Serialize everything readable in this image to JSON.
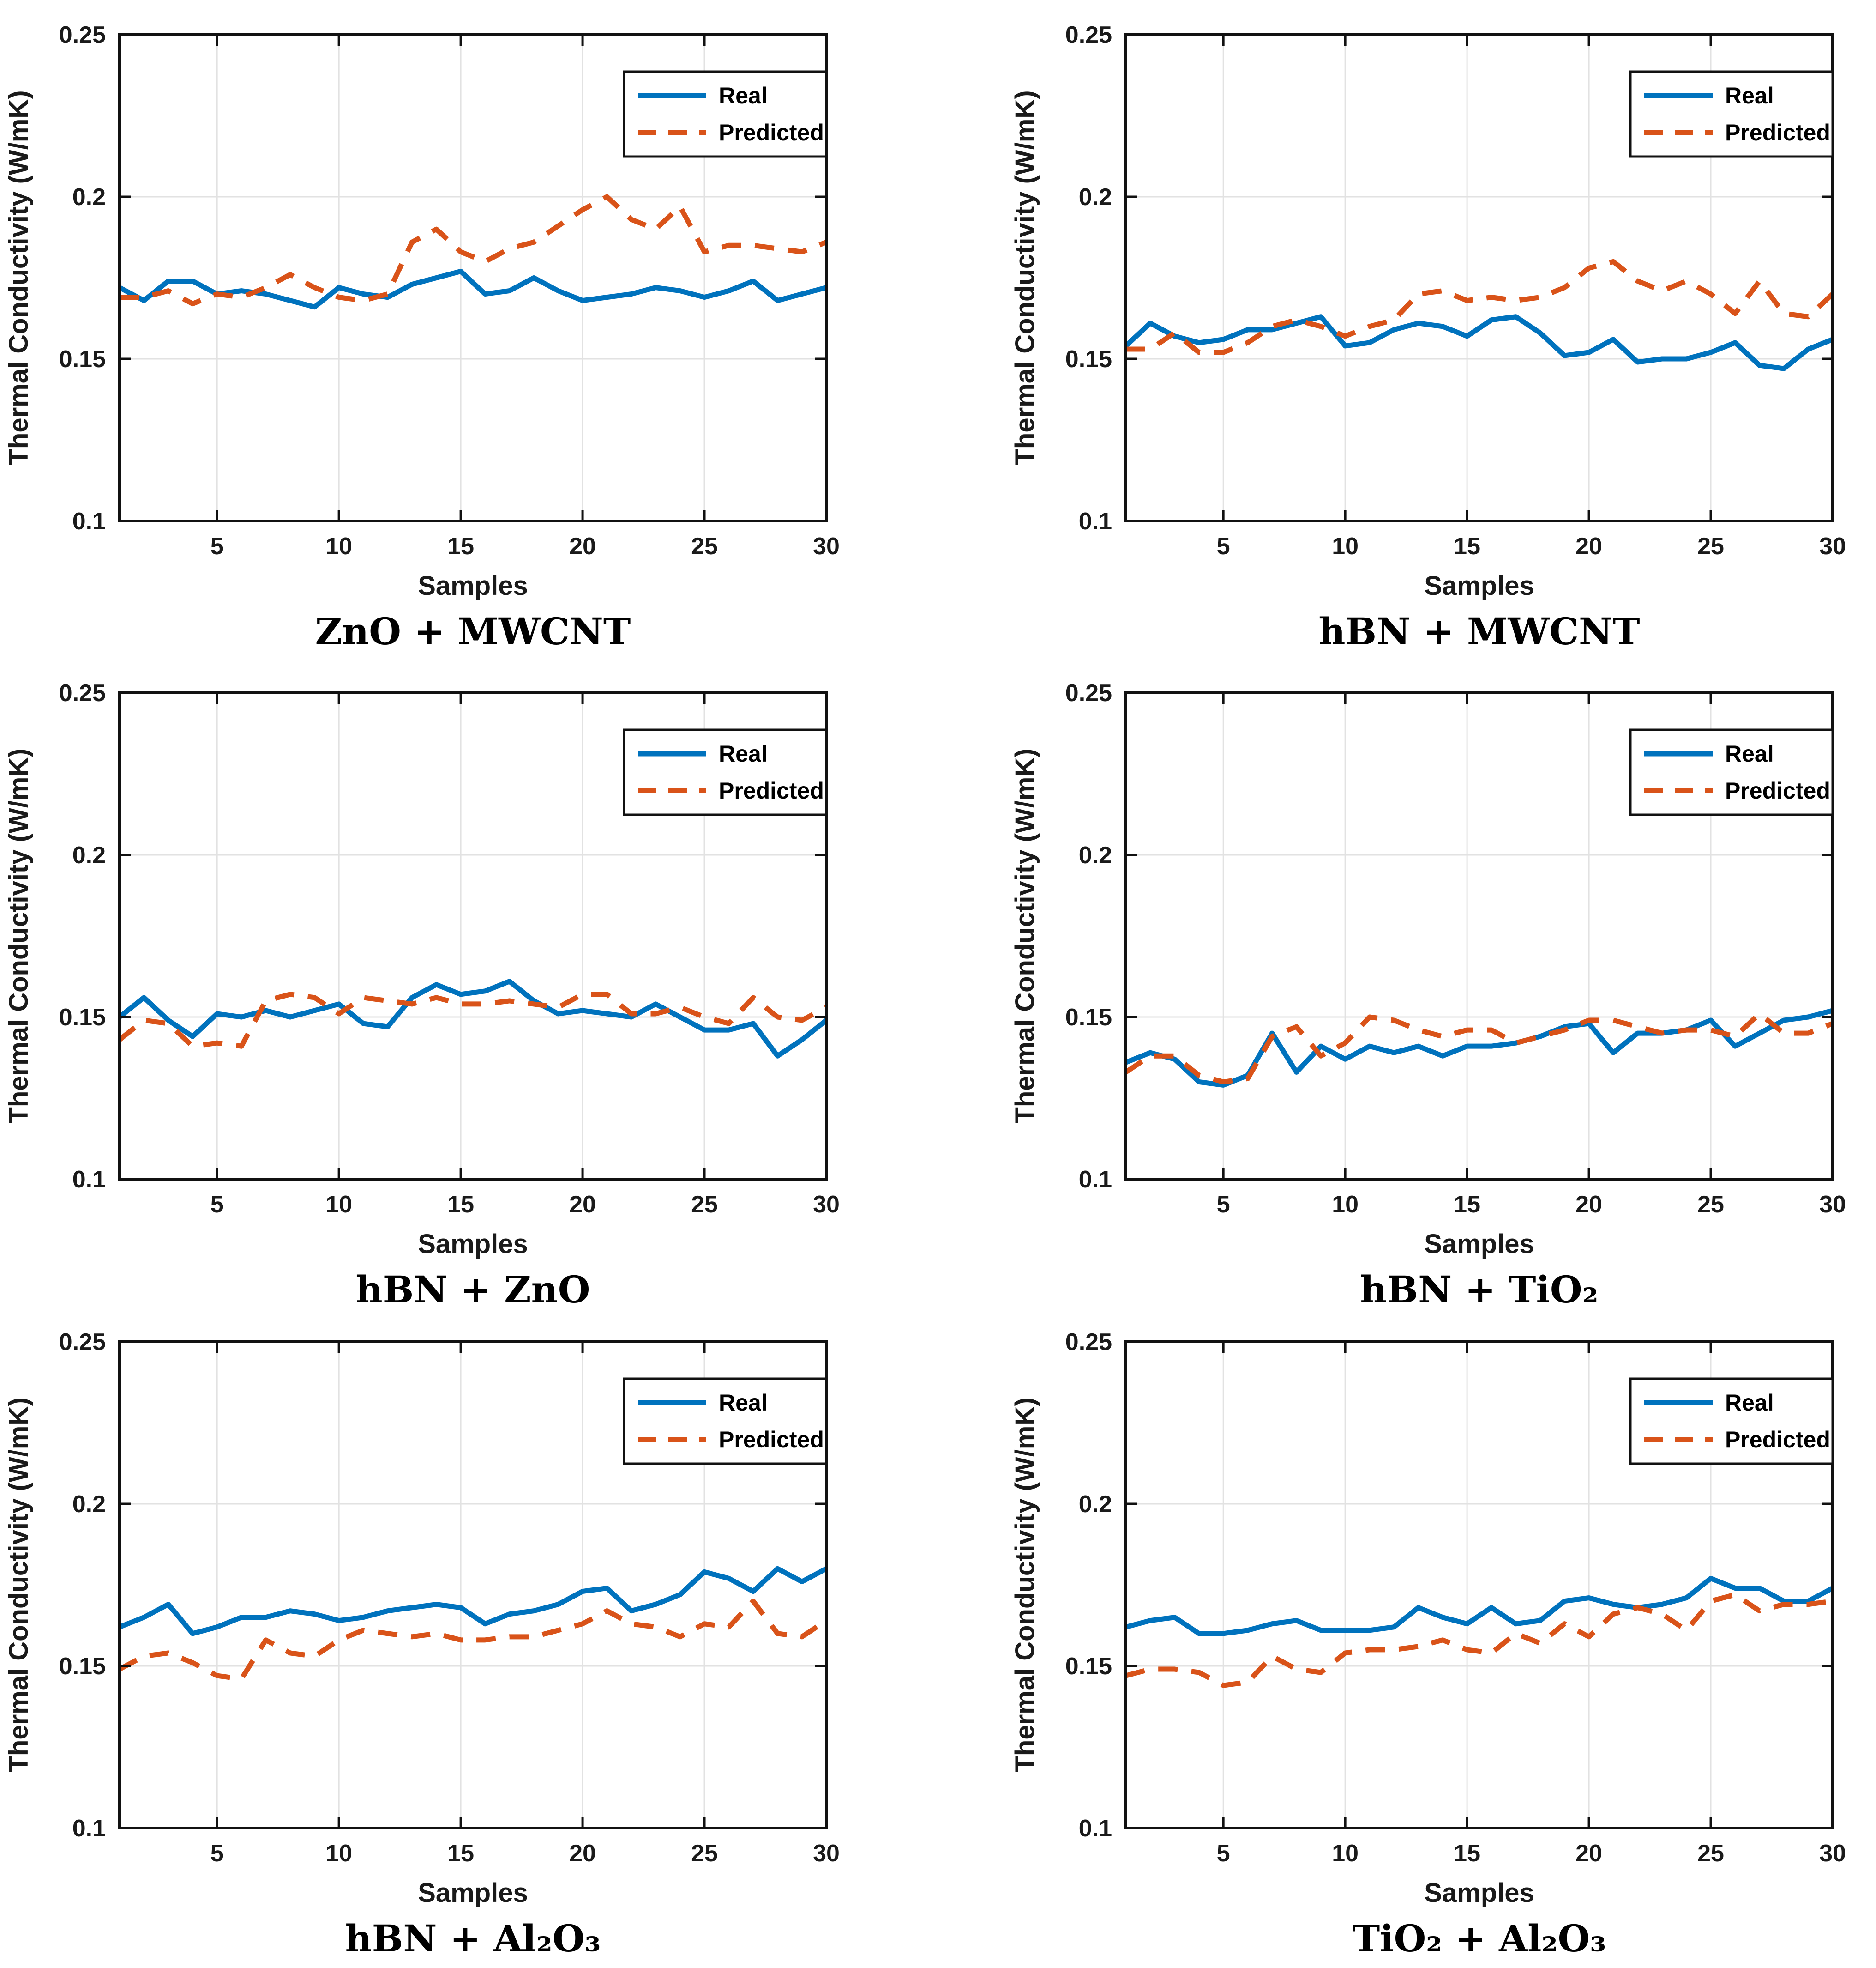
{
  "figure": {
    "xlabel": "Samples",
    "ylabel": "Thermal Conductivity (W/mK)",
    "legend": {
      "real_label": "Real",
      "predicted_label": "Predicted",
      "position": "top-right"
    },
    "colors": {
      "real": "#0072BD",
      "predicted": "#D95319",
      "grid": "#E2E2E2",
      "axis": "#111111",
      "tick_text": "#1a1a1a",
      "background": "#ffffff"
    }
  },
  "chart_data": [
    {
      "type": "line",
      "title": "ZnO + MWCNT",
      "xlabel": "Samples",
      "ylabel": "Thermal Conductivity (W/mK)",
      "xlim": [
        1,
        30
      ],
      "ylim": [
        0.1,
        0.25
      ],
      "xticks": [
        5,
        10,
        15,
        20,
        25,
        30
      ],
      "xtick_labels": [
        "5",
        "10",
        "15",
        "20",
        "25",
        "30"
      ],
      "yticks": [
        0.1,
        0.15,
        0.2,
        0.25
      ],
      "ytick_labels": [
        "0.1",
        "0.15",
        "0.2",
        "0.25"
      ],
      "grid": true,
      "legend_position": "top-right",
      "x": [
        1,
        2,
        3,
        4,
        5,
        6,
        7,
        8,
        9,
        10,
        11,
        12,
        13,
        14,
        15,
        16,
        17,
        18,
        19,
        20,
        21,
        22,
        23,
        24,
        25,
        26,
        27,
        28,
        29,
        30
      ],
      "series": [
        {
          "name": "Real",
          "style": "solid",
          "values": [
            0.172,
            0.168,
            0.174,
            0.174,
            0.17,
            0.171,
            0.17,
            0.168,
            0.166,
            0.172,
            0.17,
            0.169,
            0.173,
            0.175,
            0.177,
            0.17,
            0.171,
            0.175,
            0.171,
            0.168,
            0.169,
            0.17,
            0.172,
            0.171,
            0.169,
            0.171,
            0.174,
            0.168,
            0.17,
            0.172
          ]
        },
        {
          "name": "Predicted",
          "style": "dashed",
          "values": [
            0.169,
            0.169,
            0.171,
            0.167,
            0.17,
            0.169,
            0.172,
            0.176,
            0.172,
            0.169,
            0.168,
            0.17,
            0.186,
            0.19,
            0.183,
            0.18,
            0.184,
            0.186,
            0.191,
            0.196,
            0.2,
            0.193,
            0.19,
            0.197,
            0.183,
            0.185,
            0.185,
            0.184,
            0.183,
            0.186
          ]
        }
      ]
    },
    {
      "type": "line",
      "title": "hBN + MWCNT",
      "xlabel": "Samples",
      "ylabel": "Thermal Conductivity (W/mK)",
      "xlim": [
        1,
        30
      ],
      "ylim": [
        0.1,
        0.25
      ],
      "xticks": [
        5,
        10,
        15,
        20,
        25,
        30
      ],
      "xtick_labels": [
        "5",
        "10",
        "15",
        "20",
        "25",
        "30"
      ],
      "yticks": [
        0.1,
        0.15,
        0.2,
        0.25
      ],
      "ytick_labels": [
        "0.1",
        "0.15",
        "0.2",
        "0.25"
      ],
      "grid": true,
      "legend_position": "top-right",
      "x": [
        1,
        2,
        3,
        4,
        5,
        6,
        7,
        8,
        9,
        10,
        11,
        12,
        13,
        14,
        15,
        16,
        17,
        18,
        19,
        20,
        21,
        22,
        23,
        24,
        25,
        26,
        27,
        28,
        29,
        30
      ],
      "series": [
        {
          "name": "Real",
          "style": "solid",
          "values": [
            0.154,
            0.161,
            0.157,
            0.155,
            0.156,
            0.159,
            0.159,
            0.161,
            0.163,
            0.154,
            0.155,
            0.159,
            0.161,
            0.16,
            0.157,
            0.162,
            0.163,
            0.158,
            0.151,
            0.152,
            0.156,
            0.149,
            0.15,
            0.15,
            0.152,
            0.155,
            0.148,
            0.147,
            0.153,
            0.156
          ]
        },
        {
          "name": "Predicted",
          "style": "dashed",
          "values": [
            0.153,
            0.153,
            0.158,
            0.152,
            0.152,
            0.155,
            0.16,
            0.162,
            0.16,
            0.157,
            0.16,
            0.162,
            0.17,
            0.171,
            0.168,
            0.169,
            0.168,
            0.169,
            0.172,
            0.178,
            0.18,
            0.174,
            0.171,
            0.174,
            0.17,
            0.164,
            0.174,
            0.164,
            0.163,
            0.17
          ]
        }
      ]
    },
    {
      "type": "line",
      "title": "hBN + ZnO",
      "xlabel": "Samples",
      "ylabel": "Thermal Conductivity (W/mK)",
      "xlim": [
        1,
        30
      ],
      "ylim": [
        0.1,
        0.25
      ],
      "xticks": [
        5,
        10,
        15,
        20,
        25,
        30
      ],
      "xtick_labels": [
        "5",
        "10",
        "15",
        "20",
        "25",
        "30"
      ],
      "yticks": [
        0.1,
        0.15,
        0.2,
        0.25
      ],
      "ytick_labels": [
        "0.1",
        "0.15",
        "0.2",
        "0.25"
      ],
      "grid": true,
      "legend_position": "top-right",
      "x": [
        1,
        2,
        3,
        4,
        5,
        6,
        7,
        8,
        9,
        10,
        11,
        12,
        13,
        14,
        15,
        16,
        17,
        18,
        19,
        20,
        21,
        22,
        23,
        24,
        25,
        26,
        27,
        28,
        29,
        30
      ],
      "series": [
        {
          "name": "Real",
          "style": "solid",
          "values": [
            0.15,
            0.156,
            0.149,
            0.144,
            0.151,
            0.15,
            0.152,
            0.15,
            0.152,
            0.154,
            0.148,
            0.147,
            0.156,
            0.16,
            0.157,
            0.158,
            0.161,
            0.155,
            0.151,
            0.152,
            0.151,
            0.15,
            0.154,
            0.15,
            0.146,
            0.146,
            0.148,
            0.138,
            0.143,
            0.149
          ]
        },
        {
          "name": "Predicted",
          "style": "dashed",
          "values": [
            0.143,
            0.149,
            0.148,
            0.141,
            0.142,
            0.141,
            0.155,
            0.157,
            0.156,
            0.151,
            0.156,
            0.155,
            0.154,
            0.156,
            0.154,
            0.154,
            0.155,
            0.154,
            0.153,
            0.157,
            0.157,
            0.151,
            0.151,
            0.153,
            0.15,
            0.148,
            0.156,
            0.15,
            0.149,
            0.153
          ]
        }
      ]
    },
    {
      "type": "line",
      "title": "hBN + TiO₂",
      "xlabel": "Samples",
      "ylabel": "Thermal Conductivity (W/mK)",
      "xlim": [
        1,
        30
      ],
      "ylim": [
        0.1,
        0.25
      ],
      "xticks": [
        5,
        10,
        15,
        20,
        25,
        30
      ],
      "xtick_labels": [
        "5",
        "10",
        "15",
        "20",
        "25",
        "30"
      ],
      "yticks": [
        0.1,
        0.15,
        0.2,
        0.25
      ],
      "ytick_labels": [
        "0.1",
        "0.15",
        "0.2",
        "0.25"
      ],
      "grid": true,
      "legend_position": "top-right",
      "x": [
        1,
        2,
        3,
        4,
        5,
        6,
        7,
        8,
        9,
        10,
        11,
        12,
        13,
        14,
        15,
        16,
        17,
        18,
        19,
        20,
        21,
        22,
        23,
        24,
        25,
        26,
        27,
        28,
        29,
        30
      ],
      "series": [
        {
          "name": "Real",
          "style": "solid",
          "values": [
            0.136,
            0.139,
            0.137,
            0.13,
            0.129,
            0.132,
            0.145,
            0.133,
            0.141,
            0.137,
            0.141,
            0.139,
            0.141,
            0.138,
            0.141,
            0.141,
            0.142,
            0.144,
            0.147,
            0.148,
            0.139,
            0.145,
            0.145,
            0.146,
            0.149,
            0.141,
            0.145,
            0.149,
            0.15,
            0.152
          ]
        },
        {
          "name": "Predicted",
          "style": "dashed",
          "values": [
            0.133,
            0.138,
            0.138,
            0.132,
            0.13,
            0.131,
            0.144,
            0.147,
            0.138,
            0.142,
            0.15,
            0.149,
            0.146,
            0.144,
            0.146,
            0.146,
            0.142,
            0.144,
            0.146,
            0.149,
            0.149,
            0.147,
            0.145,
            0.146,
            0.146,
            0.144,
            0.151,
            0.145,
            0.145,
            0.148
          ]
        }
      ]
    },
    {
      "type": "line",
      "title": "hBN + Al₂O₃",
      "xlabel": "Samples",
      "ylabel": "Thermal Conductivity (W/mK)",
      "xlim": [
        1,
        30
      ],
      "ylim": [
        0.1,
        0.25
      ],
      "xticks": [
        5,
        10,
        15,
        20,
        25,
        30
      ],
      "xtick_labels": [
        "5",
        "10",
        "15",
        "20",
        "25",
        "30"
      ],
      "yticks": [
        0.1,
        0.15,
        0.2,
        0.25
      ],
      "ytick_labels": [
        "0.1",
        "0.15",
        "0.2",
        "0.25"
      ],
      "grid": true,
      "legend_position": "top-right",
      "x": [
        1,
        2,
        3,
        4,
        5,
        6,
        7,
        8,
        9,
        10,
        11,
        12,
        13,
        14,
        15,
        16,
        17,
        18,
        19,
        20,
        21,
        22,
        23,
        24,
        25,
        26,
        27,
        28,
        29,
        30
      ],
      "series": [
        {
          "name": "Real",
          "style": "solid",
          "values": [
            0.162,
            0.165,
            0.169,
            0.16,
            0.162,
            0.165,
            0.165,
            0.167,
            0.166,
            0.164,
            0.165,
            0.167,
            0.168,
            0.169,
            0.168,
            0.163,
            0.166,
            0.167,
            0.169,
            0.173,
            0.174,
            0.167,
            0.169,
            0.172,
            0.179,
            0.177,
            0.173,
            0.18,
            0.176,
            0.18
          ]
        },
        {
          "name": "Predicted",
          "style": "dashed",
          "values": [
            0.149,
            0.153,
            0.154,
            0.151,
            0.147,
            0.146,
            0.158,
            0.154,
            0.153,
            0.158,
            0.161,
            0.16,
            0.159,
            0.16,
            0.158,
            0.158,
            0.159,
            0.159,
            0.161,
            0.163,
            0.167,
            0.163,
            0.162,
            0.159,
            0.163,
            0.162,
            0.17,
            0.16,
            0.159,
            0.164
          ]
        }
      ]
    },
    {
      "type": "line",
      "title": "TiO₂ + Al₂O₃",
      "xlabel": "Samples",
      "ylabel": "Thermal Conductivity (W/mK)",
      "xlim": [
        1,
        30
      ],
      "ylim": [
        0.1,
        0.25
      ],
      "xticks": [
        5,
        10,
        15,
        20,
        25,
        30
      ],
      "xtick_labels": [
        "5",
        "10",
        "15",
        "20",
        "25",
        "30"
      ],
      "yticks": [
        0.1,
        0.15,
        0.2,
        0.25
      ],
      "ytick_labels": [
        "0.1",
        "0.15",
        "0.2",
        "0.25"
      ],
      "grid": true,
      "legend_position": "top-right",
      "x": [
        1,
        2,
        3,
        4,
        5,
        6,
        7,
        8,
        9,
        10,
        11,
        12,
        13,
        14,
        15,
        16,
        17,
        18,
        19,
        20,
        21,
        22,
        23,
        24,
        25,
        26,
        27,
        28,
        29,
        30
      ],
      "series": [
        {
          "name": "Real",
          "style": "solid",
          "values": [
            0.162,
            0.164,
            0.165,
            0.16,
            0.16,
            0.161,
            0.163,
            0.164,
            0.161,
            0.161,
            0.161,
            0.162,
            0.168,
            0.165,
            0.163,
            0.168,
            0.163,
            0.164,
            0.17,
            0.171,
            0.169,
            0.168,
            0.169,
            0.171,
            0.177,
            0.174,
            0.174,
            0.17,
            0.17,
            0.174
          ]
        },
        {
          "name": "Predicted",
          "style": "dashed",
          "values": [
            0.147,
            0.149,
            0.149,
            0.148,
            0.144,
            0.145,
            0.153,
            0.149,
            0.148,
            0.154,
            0.155,
            0.155,
            0.156,
            0.158,
            0.155,
            0.154,
            0.16,
            0.157,
            0.163,
            0.159,
            0.166,
            0.168,
            0.166,
            0.161,
            0.17,
            0.172,
            0.167,
            0.169,
            0.169,
            0.17
          ]
        }
      ]
    }
  ]
}
